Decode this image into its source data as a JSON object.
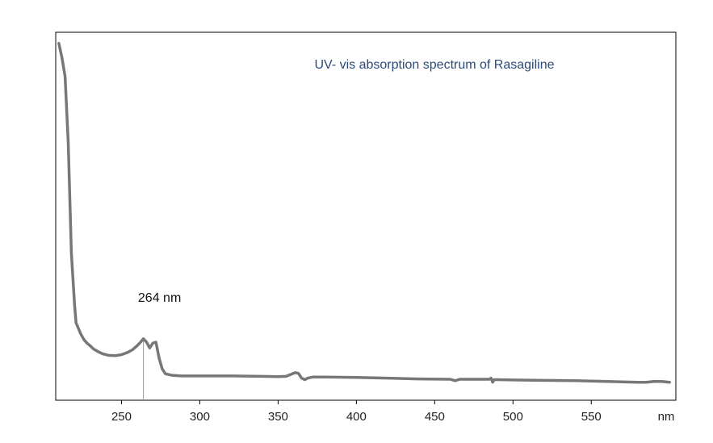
{
  "chart_data": {
    "type": "line",
    "title": "UV- vis absorption spectrum of Rasagiline",
    "xlabel": "nm",
    "ylabel": "",
    "xlim": [
      208,
      604
    ],
    "ylim": [
      0,
      1
    ],
    "x_ticks": [
      250,
      300,
      350,
      400,
      450,
      500,
      550
    ],
    "y_ticks": [],
    "grid": false,
    "annotation": {
      "text": "264 nm",
      "x": 264
    },
    "colors": {
      "series": "#777777",
      "title": "#2b4a7a",
      "axis": "#000000",
      "marker": "#999999"
    },
    "series": [
      {
        "x": [
          210,
          212,
          214,
          216,
          218,
          220,
          221,
          222,
          224,
          226,
          228,
          230,
          232,
          235,
          238,
          242,
          246,
          250,
          254,
          257,
          260,
          262,
          264,
          266,
          268,
          270,
          272,
          274,
          276,
          278,
          282,
          288,
          300,
          320,
          340,
          350,
          355,
          358,
          361,
          363,
          365,
          367,
          369,
          372,
          380,
          400,
          420,
          440,
          460,
          463,
          466,
          480,
          485,
          486,
          487,
          488,
          490,
          500,
          520,
          540,
          560,
          580,
          585,
          590,
          595,
          600
        ],
        "y": [
          0.97,
          0.93,
          0.88,
          0.7,
          0.4,
          0.26,
          0.21,
          0.2,
          0.18,
          0.165,
          0.155,
          0.148,
          0.14,
          0.132,
          0.126,
          0.122,
          0.121,
          0.124,
          0.13,
          0.137,
          0.148,
          0.157,
          0.167,
          0.158,
          0.142,
          0.155,
          0.158,
          0.115,
          0.085,
          0.072,
          0.068,
          0.066,
          0.066,
          0.066,
          0.065,
          0.064,
          0.065,
          0.07,
          0.075,
          0.073,
          0.06,
          0.056,
          0.06,
          0.063,
          0.063,
          0.062,
          0.06,
          0.058,
          0.057,
          0.053,
          0.057,
          0.057,
          0.057,
          0.06,
          0.049,
          0.056,
          0.056,
          0.055,
          0.054,
          0.053,
          0.051,
          0.049,
          0.049,
          0.051,
          0.051,
          0.049
        ]
      }
    ]
  }
}
